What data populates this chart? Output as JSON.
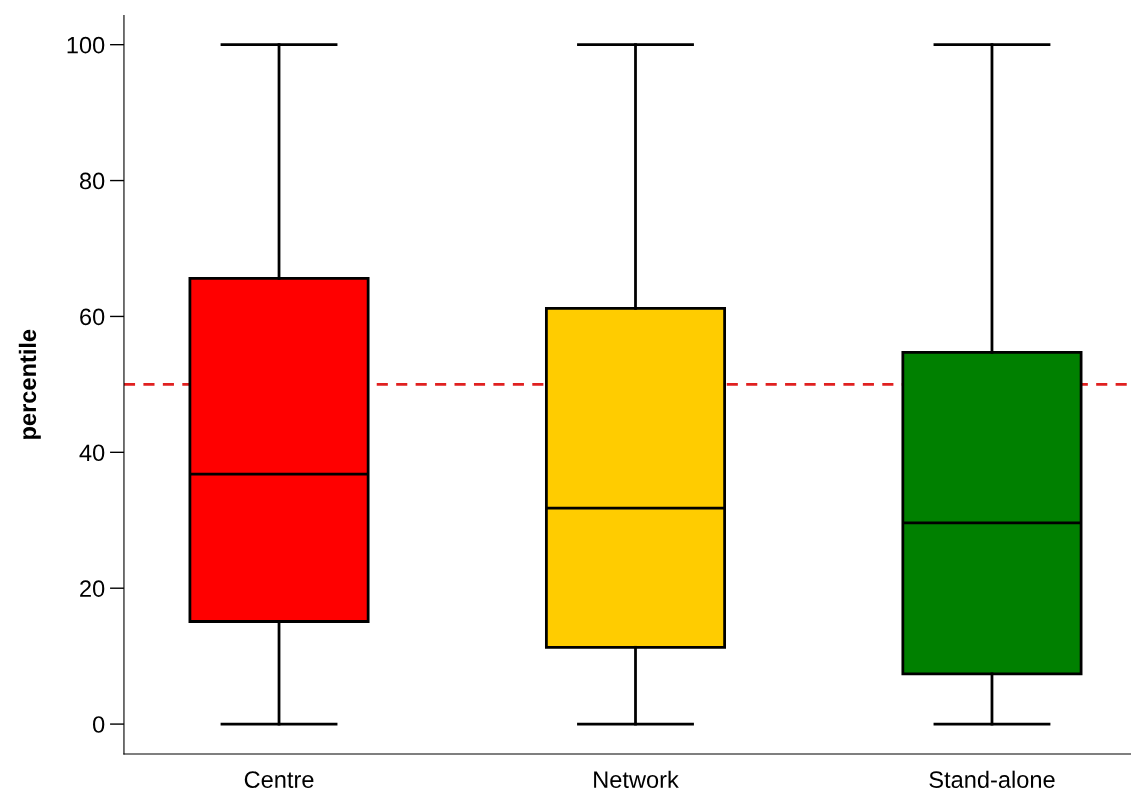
{
  "chart_data": {
    "type": "box",
    "ylabel": "percentile",
    "categories": [
      "Centre",
      "Network",
      "Stand-alone"
    ],
    "colors": [
      "#ff0000",
      "#ffcc00",
      "#008000"
    ],
    "boxes": [
      {
        "low": 0,
        "q1": 15.1,
        "median": 36.8,
        "q3": 65.6,
        "high": 100
      },
      {
        "low": 0,
        "q1": 11.3,
        "median": 31.8,
        "q3": 61.2,
        "high": 100
      },
      {
        "low": 0,
        "q1": 7.4,
        "median": 29.6,
        "q3": 54.7,
        "high": 100
      }
    ],
    "ylim": [
      -4.4,
      104.3
    ],
    "yticks": [
      0,
      20,
      40,
      60,
      80,
      100
    ],
    "grid": false,
    "ref_lines": [
      {
        "axis": "y",
        "value": 50,
        "color": "#e02020",
        "line_style": "dashed"
      }
    ]
  }
}
